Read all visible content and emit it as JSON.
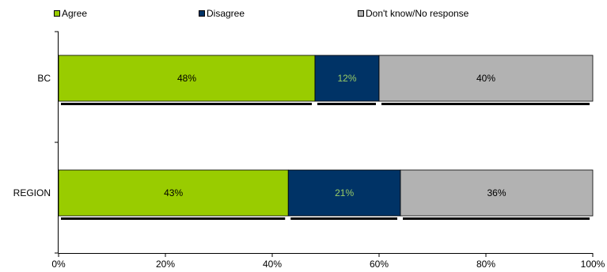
{
  "chart_data": {
    "type": "bar",
    "orientation": "horizontal",
    "stacked": true,
    "categories": [
      "BC",
      "REGION"
    ],
    "series": [
      {
        "name": "Agree",
        "values": [
          48,
          43
        ],
        "color": "#99cc00",
        "label_color": "#000000"
      },
      {
        "name": "Disagree",
        "values": [
          12,
          21
        ],
        "color": "#003366",
        "label_color": "#99cc66"
      },
      {
        "name": "Don't know/No response",
        "values": [
          40,
          36
        ],
        "color": "#b2b2b2",
        "label_color": "#000000"
      }
    ],
    "data_labels": [
      [
        "48%",
        "43%"
      ],
      [
        "12%",
        "21%"
      ],
      [
        "40%",
        "36%"
      ]
    ],
    "x_ticks": [
      "0%",
      "20%",
      "40%",
      "60%",
      "80%",
      "100%"
    ],
    "xlim": [
      0,
      100
    ],
    "legend_position": "top",
    "grid": false
  }
}
